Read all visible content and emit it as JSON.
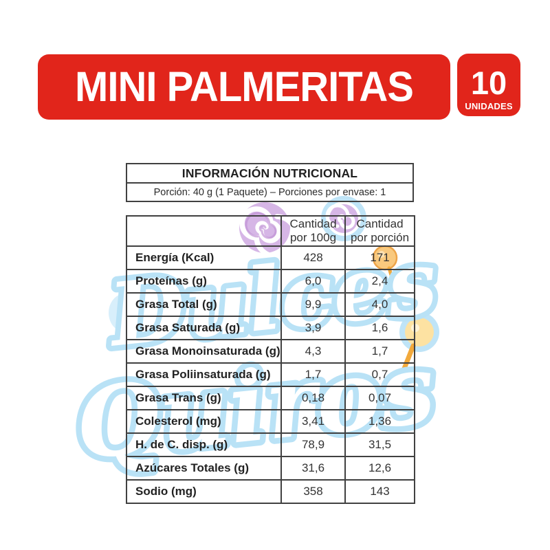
{
  "banner": {
    "title": "MINI PALMERITAS",
    "badge_count": "10",
    "badge_label": "UNIDADES",
    "background_color": "#e1251b",
    "text_color": "#ffffff"
  },
  "nutrition_header": {
    "title": "INFORMACIÓN NUTRICIONAL",
    "serving_line": "Porción: 40 g (1 Paquete) – Porciones por envase: 1"
  },
  "table": {
    "columns": {
      "per100g": {
        "line1": "Cantidad",
        "line2": "por 100g"
      },
      "per_portion": {
        "line1": "Cantidad",
        "line2": "por porción"
      }
    },
    "rows": [
      {
        "label": "Energía (Kcal)",
        "per100g": "428",
        "per_portion": "171"
      },
      {
        "label": "Proteínas (g)",
        "per100g": "6,0",
        "per_portion": "2,4"
      },
      {
        "label": "Grasa Total (g)",
        "per100g": "9,9",
        "per_portion": "4,0"
      },
      {
        "label": "Grasa Saturada (g)",
        "per100g": "3,9",
        "per_portion": "1,6"
      },
      {
        "label": "Grasa Monoinsaturada (g)",
        "per100g": "4,3",
        "per_portion": "1,7"
      },
      {
        "label": "Grasa Poliinsaturada (g)",
        "per100g": "1,7",
        "per_portion": "0,7"
      },
      {
        "label": "Grasa Trans (g)",
        "per100g": "0,18",
        "per_portion": "0,07"
      },
      {
        "label": "Colesterol (mg)",
        "per100g": "3,41",
        "per_portion": "1,36"
      },
      {
        "label": "H. de C. disp. (g)",
        "per100g": "78,9",
        "per_portion": "31,5"
      },
      {
        "label": "Azúcares Totales (g)",
        "per100g": "31,6",
        "per_portion": "12,6"
      },
      {
        "label": "Sodio (mg)",
        "per100g": "358",
        "per_portion": "143"
      }
    ]
  },
  "watermark": {
    "word1": "Dulces",
    "word2": "Quiros",
    "blue": "#b9e2f6",
    "light_blue": "#cdeaf9",
    "purple": "#d6b6e6",
    "purple_deep": "#c093d4",
    "orange": "#f2a93b",
    "peach": "#f9c97e",
    "cream": "#fde2a2"
  },
  "colors": {
    "table_border": "#404040",
    "text_dark": "#222222",
    "background": "#ffffff"
  }
}
